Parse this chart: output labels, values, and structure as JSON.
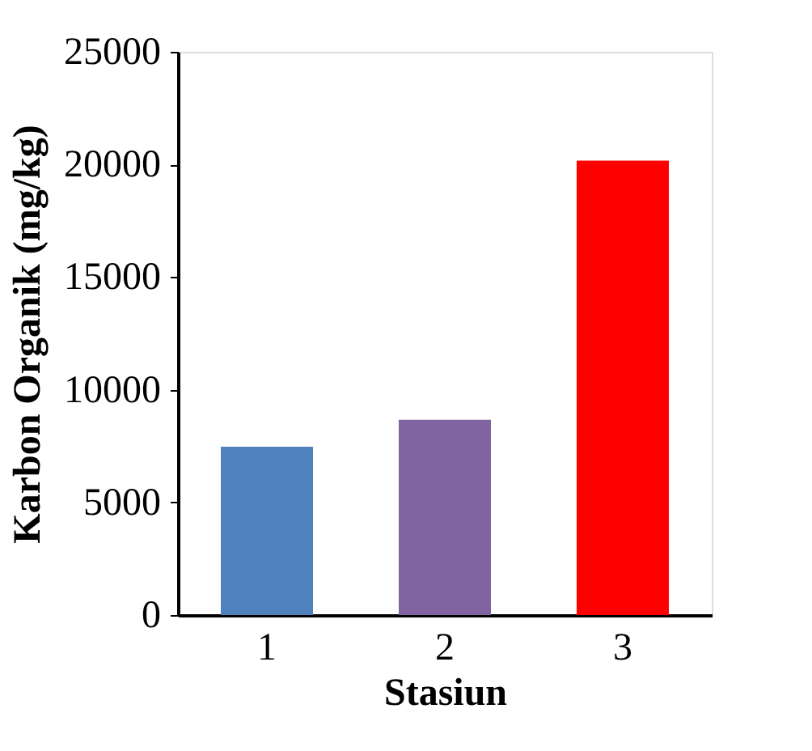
{
  "chart_data": {
    "type": "bar",
    "xlabel": "Stasiun",
    "ylabel": "Karbon Organik (mg/kg)",
    "categories": [
      "1",
      "2",
      "3"
    ],
    "values": [
      7470,
      8670,
      20170
    ],
    "colors": [
      "#4f81bd",
      "#8064a2",
      "#ff0000"
    ],
    "ylim": [
      0,
      25000
    ],
    "yticks": [
      0,
      5000,
      10000,
      15000,
      20000,
      25000
    ],
    "grid": false
  }
}
